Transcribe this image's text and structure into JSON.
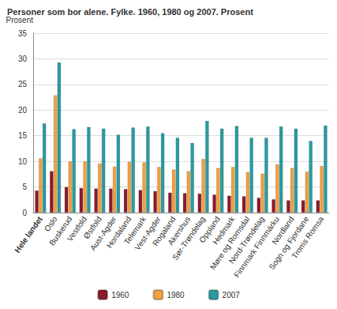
{
  "chart_data": {
    "type": "bar",
    "title": "Personer som bor alene. Fylke. 1960, 1980 og 2007. Prosent",
    "y_label": "Prosent",
    "categories": [
      "Hele landet",
      "Oslo",
      "Buskerud",
      "Vestfold",
      "Østfold",
      "Aust-Agder",
      "Hordaland",
      "Telemark",
      "Vest-Agder",
      "Rogaland",
      "Akershus",
      "Sør-Trøndelag",
      "Oppland",
      "Hedmark",
      "Møre og Romsdal",
      "Nord-Trøndelag",
      "Finnmark Finnmárku",
      "Nordland",
      "Sogn og Fjordane",
      "Troms Romsa"
    ],
    "series": [
      {
        "name": "1960",
        "color": "#8b1a2b",
        "values": [
          4.3,
          8.1,
          5.0,
          4.8,
          4.7,
          4.7,
          4.6,
          4.4,
          4.2,
          3.9,
          3.8,
          3.7,
          3.5,
          3.3,
          3.2,
          2.9,
          2.6,
          2.4,
          2.4,
          2.4
        ]
      },
      {
        "name": "1980",
        "color": "#f0a040",
        "values": [
          10.6,
          22.9,
          10.0,
          10.0,
          9.6,
          9.0,
          9.9,
          9.8,
          8.9,
          8.4,
          8.1,
          10.5,
          8.7,
          8.9,
          7.9,
          7.6,
          9.4,
          8.7,
          8.0,
          9.1
        ]
      },
      {
        "name": "2007",
        "color": "#2a9aa0",
        "values": [
          17.4,
          29.3,
          16.3,
          16.7,
          16.4,
          15.2,
          16.6,
          16.8,
          15.5,
          14.6,
          13.6,
          17.9,
          16.4,
          16.9,
          14.6,
          14.6,
          16.8,
          16.4,
          14.0,
          17.0
        ]
      }
    ],
    "ylim": [
      0,
      35
    ],
    "yticks": [
      0,
      5,
      10,
      15,
      20,
      25,
      30,
      35
    ],
    "grid": true,
    "legend": "bottom"
  }
}
